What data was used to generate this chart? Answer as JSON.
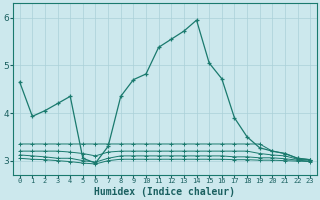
{
  "xlabel": "Humidex (Indice chaleur)",
  "background_color": "#cce8ed",
  "grid_color": "#aad0d8",
  "line_color": "#1a7a6e",
  "x_ticks": [
    0,
    1,
    2,
    3,
    4,
    5,
    6,
    7,
    8,
    9,
    10,
    11,
    12,
    13,
    14,
    15,
    16,
    17,
    18,
    19,
    20,
    21,
    22,
    23
  ],
  "ylim": [
    2.7,
    6.3
  ],
  "yticks": [
    3,
    4,
    5,
    6
  ],
  "series": [
    [
      4.65,
      3.93,
      4.05,
      4.2,
      4.35,
      3.05,
      2.95,
      3.3,
      4.35,
      4.7,
      4.82,
      5.38,
      5.55,
      5.72,
      5.95,
      5.05,
      4.72,
      3.9,
      3.5,
      3.27,
      3.2,
      3.15,
      3.05,
      3.02
    ],
    [
      3.35,
      3.35,
      3.35,
      3.35,
      3.35,
      3.35,
      3.35,
      3.35,
      3.35,
      3.35,
      3.35,
      3.35,
      3.35,
      3.35,
      3.35,
      3.35,
      3.35,
      3.35,
      3.35,
      3.35,
      3.2,
      3.15,
      3.05,
      3.02
    ],
    [
      3.2,
      3.2,
      3.2,
      3.2,
      3.18,
      3.15,
      3.1,
      3.18,
      3.2,
      3.2,
      3.2,
      3.2,
      3.2,
      3.2,
      3.2,
      3.2,
      3.2,
      3.2,
      3.2,
      3.15,
      3.12,
      3.1,
      3.03,
      3.01
    ],
    [
      3.12,
      3.1,
      3.08,
      3.05,
      3.05,
      3.0,
      2.97,
      3.05,
      3.1,
      3.1,
      3.1,
      3.1,
      3.1,
      3.1,
      3.1,
      3.1,
      3.1,
      3.08,
      3.08,
      3.06,
      3.06,
      3.04,
      3.01,
      2.99
    ],
    [
      3.05,
      3.03,
      3.02,
      3.0,
      2.98,
      2.95,
      2.93,
      3.0,
      3.03,
      3.03,
      3.03,
      3.03,
      3.03,
      3.03,
      3.03,
      3.03,
      3.03,
      3.02,
      3.02,
      3.01,
      3.01,
      3.0,
      2.99,
      2.98
    ]
  ]
}
